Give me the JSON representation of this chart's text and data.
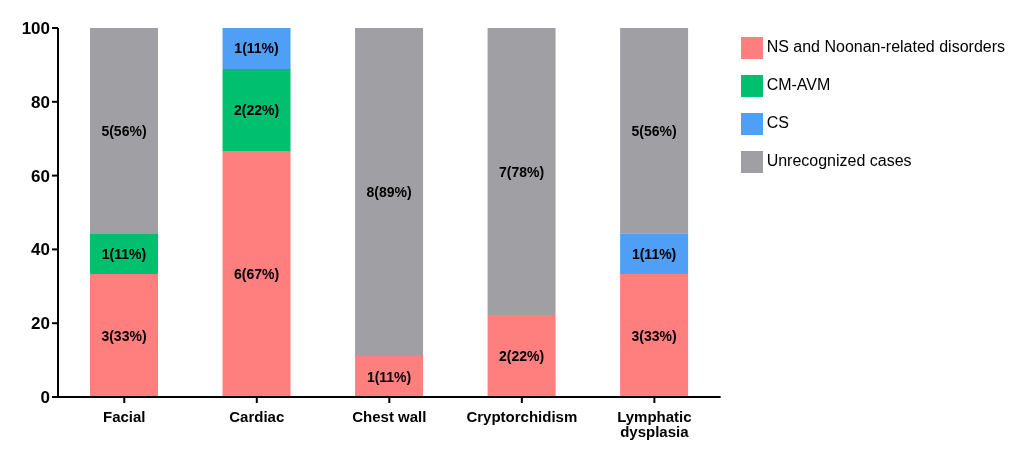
{
  "chart_data": {
    "type": "bar",
    "stacked": true,
    "categories": [
      "Facial",
      "Cardiac",
      "Chest wall",
      "Cryptorchidism",
      "Lymphatic dysplasia"
    ],
    "series": [
      {
        "name": "NS and Noonan-related disorders",
        "color": "#ff7f7f",
        "values": [
          33.3,
          66.7,
          11.1,
          22.2,
          33.3
        ],
        "value_labels": [
          "3(33%)",
          "6(67%)",
          "1(11%)",
          "2(22%)",
          "3(33%)"
        ]
      },
      {
        "name": "CM-AVM",
        "color": "#00c06f",
        "values": [
          11.1,
          22.2,
          null,
          null,
          null
        ],
        "value_labels": [
          "1(11%)",
          "2(22%)",
          null,
          null,
          null
        ]
      },
      {
        "name": "CS",
        "color": "#4f9ff6",
        "values": [
          null,
          11.1,
          null,
          null,
          11.1
        ],
        "value_labels": [
          null,
          "1(11%)",
          null,
          null,
          "1(11%)"
        ]
      },
      {
        "name": "Unrecognized cases",
        "color": "#a0a0a4",
        "values": [
          55.6,
          null,
          88.9,
          77.8,
          55.6
        ],
        "value_labels": [
          "5(56%)",
          null,
          "8(89%)",
          "7(78%)",
          "5(56%)"
        ]
      }
    ],
    "ylim": [
      0,
      100
    ],
    "yticks": [
      0,
      20,
      40,
      60,
      80,
      100
    ],
    "legend": "top right"
  }
}
